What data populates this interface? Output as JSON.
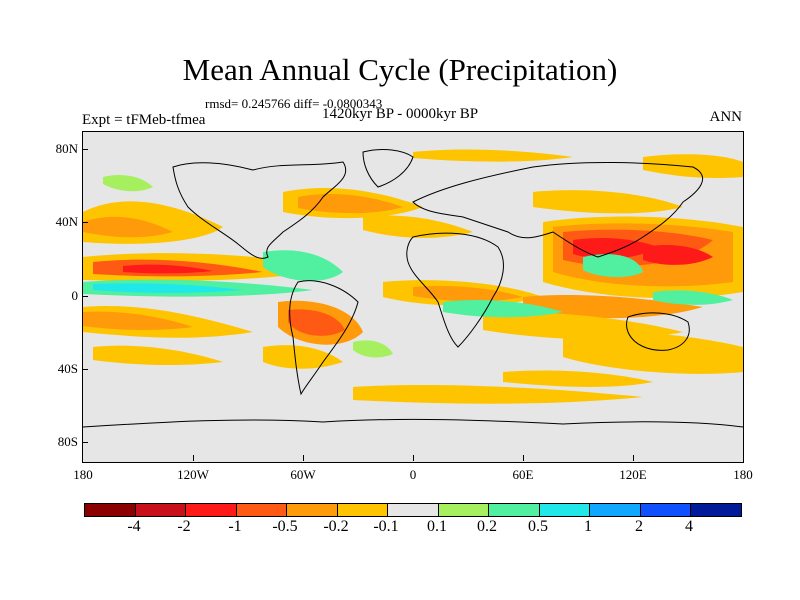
{
  "title": "Mean Annual Cycle (Precipitation)",
  "stats": "rmsd= 0.245766 diff= -0.0800343",
  "experiment": "Expt = tFMeb-tfmea",
  "period": "1420kyr BP - 0000kyr BP",
  "season": "ANN",
  "map": {
    "lon_range": [
      -180,
      180
    ],
    "lat_range": [
      -90,
      90
    ],
    "lat_labels": [
      {
        "text": "80N",
        "lat": 80
      },
      {
        "text": "40N",
        "lat": 40
      },
      {
        "text": "0",
        "lat": 0
      },
      {
        "text": "40S",
        "lat": -40
      },
      {
        "text": "80S",
        "lat": -80
      }
    ],
    "lon_labels": [
      {
        "text": "180",
        "lon": -180
      },
      {
        "text": "120W",
        "lon": -120
      },
      {
        "text": "60W",
        "lon": -60
      },
      {
        "text": "0",
        "lon": 0
      },
      {
        "text": "60E",
        "lon": 60
      },
      {
        "text": "120E",
        "lon": 120
      },
      {
        "text": "180",
        "lon": 180
      }
    ],
    "background_color": "#e6e6e6"
  },
  "colorbar": {
    "colors": [
      "#8b0000",
      "#c8101a",
      "#ff1a1a",
      "#ff5a14",
      "#ff9a0a",
      "#ffc400",
      "#e6e6e6",
      "#a6f060",
      "#50f0a0",
      "#20e8e8",
      "#10a8ff",
      "#1050ff",
      "#001a9a"
    ],
    "labels": [
      "-4",
      "-2",
      "-1",
      "-0.5",
      "-0.2",
      "-0.1",
      "0.1",
      "0.2",
      "0.5",
      "1",
      "2",
      "4"
    ]
  }
}
